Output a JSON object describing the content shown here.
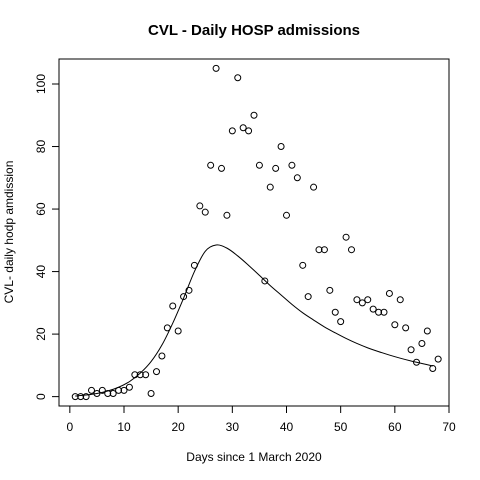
{
  "chart_data": {
    "type": "scatter",
    "title": "CVL - Daily HOSP admissions",
    "xlabel": "Days since 1 March 2020",
    "ylabel": "CVL- daily hodp amdission",
    "xlim": [
      -2,
      70
    ],
    "ylim": [
      -3,
      108
    ],
    "xticks": [
      0,
      10,
      20,
      30,
      40,
      50,
      60,
      70
    ],
    "yticks": [
      0,
      20,
      40,
      60,
      80,
      100
    ],
    "grid": false,
    "legend": "none",
    "series": [
      {
        "kind": "points",
        "x": [
          1,
          2,
          3,
          4,
          5,
          6,
          7,
          8,
          9,
          10,
          11,
          12,
          13,
          14,
          15,
          16,
          17,
          18,
          19,
          20,
          21,
          22,
          23,
          24,
          25,
          26,
          27,
          28,
          29,
          30,
          31,
          32,
          33,
          34,
          35,
          36,
          37,
          38,
          39,
          40,
          41,
          42,
          43,
          44,
          45,
          46,
          47,
          48,
          49,
          50,
          51,
          52,
          53,
          54,
          55,
          56,
          57,
          58,
          59,
          60,
          61,
          62,
          63,
          64,
          65,
          66,
          67,
          68
        ],
        "y": [
          0,
          0,
          0,
          2,
          1,
          2,
          1,
          1,
          2,
          2,
          3,
          7,
          7,
          7,
          1,
          8,
          13,
          22,
          29,
          21,
          32,
          34,
          42,
          61,
          59,
          74,
          105,
          73,
          58,
          85,
          102,
          86,
          85,
          90,
          74,
          37,
          67,
          73,
          80,
          58,
          74,
          70,
          42,
          32,
          67,
          47,
          47,
          34,
          27,
          24,
          51,
          47,
          31,
          30,
          31,
          28,
          27,
          27,
          33,
          23,
          31,
          22,
          15,
          11,
          17,
          21,
          9,
          12
        ]
      },
      {
        "kind": "fitted-curve",
        "x": [
          1,
          3,
          5,
          7,
          9,
          11,
          13,
          15,
          17,
          19,
          21,
          23,
          25,
          27,
          29,
          31,
          33,
          35,
          37,
          39,
          41,
          43,
          45,
          47,
          49,
          51,
          53,
          55,
          57,
          59,
          61,
          63,
          65,
          67
        ],
        "y": [
          0.2,
          0.5,
          1.0,
          1.8,
          3.0,
          4.8,
          7.5,
          11.2,
          16.5,
          23.5,
          31.5,
          40.0,
          46.5,
          48.5,
          47.5,
          45.0,
          42.0,
          38.8,
          35.5,
          32.5,
          29.5,
          26.8,
          24.5,
          22.3,
          20.4,
          18.6,
          17.0,
          15.6,
          14.4,
          13.3,
          12.3,
          11.4,
          10.6,
          9.8
        ]
      }
    ]
  }
}
